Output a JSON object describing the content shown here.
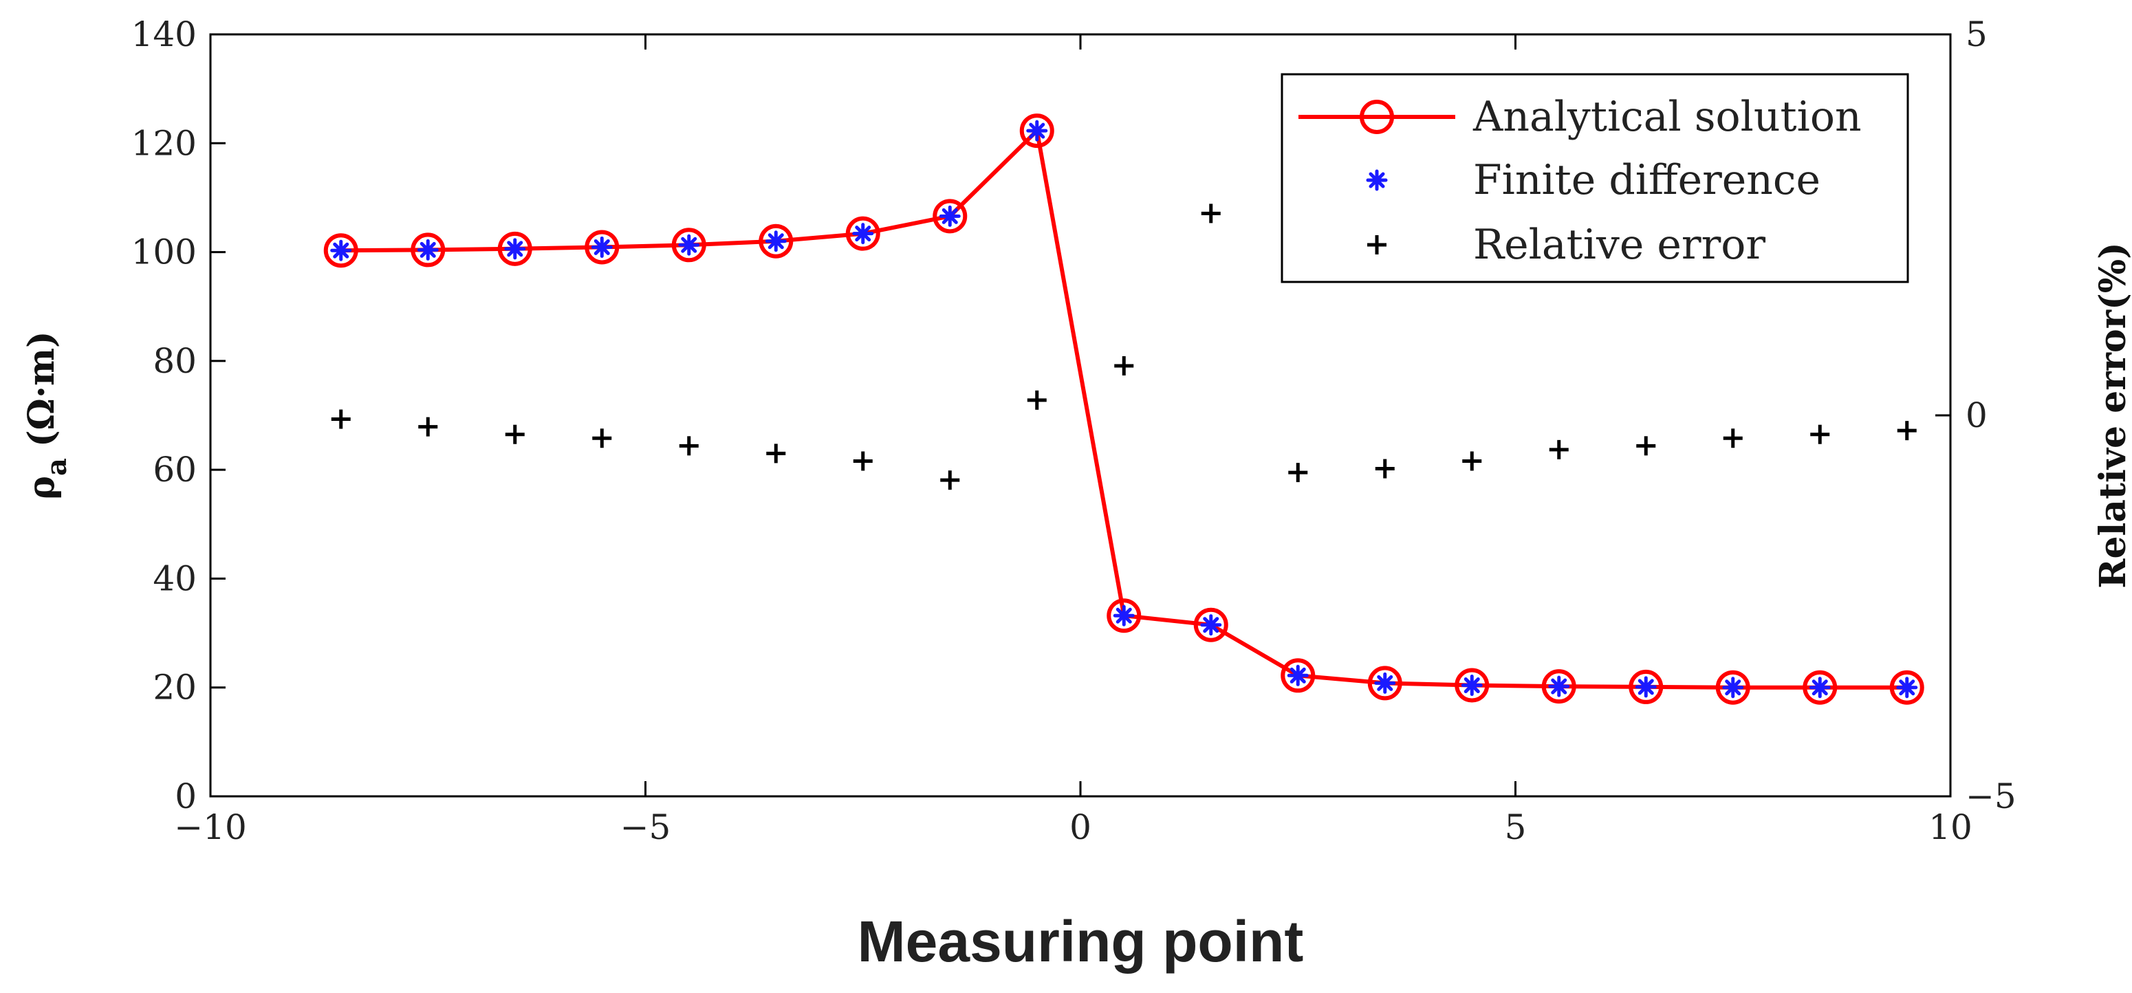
{
  "chart_data": {
    "type": "line",
    "title": "",
    "xlabel": "Measuring point",
    "ylabel": {
      "symbol": "ρ",
      "subscript": "a",
      "unit": "(Ω·m)"
    },
    "y2label": "Relative error(%)",
    "xlim": [
      -10,
      10
    ],
    "ylim": [
      0,
      140
    ],
    "y2lim": [
      -5,
      5
    ],
    "xticks": [
      -10,
      -5,
      0,
      5,
      10
    ],
    "xtick_labels": [
      "−10",
      "−5",
      "0",
      "5",
      "10"
    ],
    "yticks": [
      0,
      20,
      40,
      60,
      80,
      100,
      120,
      140
    ],
    "ytick_labels": [
      "0",
      "20",
      "40",
      "60",
      "80",
      "100",
      "120",
      "140"
    ],
    "y2ticks": [
      -5,
      0,
      5
    ],
    "y2tick_labels": [
      "−5",
      "0",
      "5"
    ],
    "grid": false,
    "legend_position": "top-right",
    "x": [
      -8.5,
      -7.5,
      -6.5,
      -5.5,
      -4.5,
      -3.5,
      -2.5,
      -1.5,
      -0.5,
      0.5,
      1.5,
      2.5,
      3.5,
      4.5,
      5.5,
      6.5,
      7.5,
      8.5,
      9.5
    ],
    "series": [
      {
        "name": "Analytical solution",
        "axis": "left",
        "style": "red-line-circle",
        "color": "#ff0000",
        "values": [
          100.3,
          100.4,
          100.6,
          100.9,
          101.3,
          102.0,
          103.4,
          106.6,
          122.3,
          33.2,
          31.5,
          22.2,
          20.8,
          20.4,
          20.2,
          20.1,
          20.0,
          20.0,
          20.0
        ]
      },
      {
        "name": "Finite difference",
        "axis": "left",
        "style": "blue-asterisk",
        "color": "#1a1aff",
        "values": [
          100.3,
          100.4,
          100.6,
          100.9,
          101.3,
          102.0,
          103.4,
          106.6,
          122.3,
          33.2,
          31.5,
          22.2,
          20.8,
          20.4,
          20.2,
          20.1,
          20.0,
          20.0,
          20.0
        ]
      },
      {
        "name": "Relative error",
        "axis": "right",
        "style": "black-plus",
        "color": "#000000",
        "values": [
          -0.05,
          -0.15,
          -0.25,
          -0.3,
          -0.4,
          -0.5,
          -0.6,
          -0.85,
          0.2,
          0.65,
          2.65,
          -0.75,
          -0.7,
          -0.6,
          -0.45,
          -0.4,
          -0.3,
          -0.25,
          -0.2
        ]
      }
    ]
  }
}
